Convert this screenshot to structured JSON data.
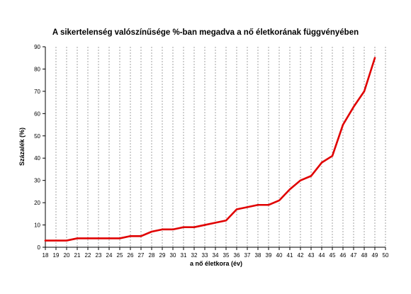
{
  "chart_data": {
    "type": "line",
    "title": "A sikertelenség valószínűsége %-ban megadva a nő életkorának függvényében",
    "xlabel": "a nő életkora (év)",
    "ylabel": "Százalék (%)",
    "xlim": [
      18,
      50
    ],
    "ylim": [
      0,
      90
    ],
    "x_ticks": [
      18,
      19,
      20,
      21,
      22,
      23,
      24,
      25,
      26,
      27,
      28,
      29,
      30,
      31,
      32,
      33,
      34,
      35,
      36,
      37,
      38,
      39,
      40,
      41,
      42,
      43,
      44,
      45,
      46,
      47,
      48,
      49,
      50
    ],
    "y_ticks": [
      0,
      10,
      20,
      30,
      40,
      50,
      60,
      70,
      80,
      90
    ],
    "grid": "vertical-dashed",
    "legend": "none",
    "series": [
      {
        "color": "#e00000",
        "x": [
          18,
          19,
          20,
          21,
          22,
          23,
          24,
          25,
          26,
          27,
          28,
          29,
          30,
          31,
          32,
          33,
          34,
          35,
          36,
          37,
          38,
          39,
          40,
          41,
          42,
          43,
          44,
          45,
          46,
          47,
          48,
          49
        ],
        "y": [
          3,
          3,
          3,
          4,
          4,
          4,
          4,
          4,
          5,
          5,
          7,
          8,
          8,
          9,
          9,
          10,
          11,
          12,
          17,
          18,
          19,
          19,
          21,
          26,
          30,
          32,
          38,
          41,
          55,
          63,
          70,
          85
        ]
      }
    ]
  }
}
